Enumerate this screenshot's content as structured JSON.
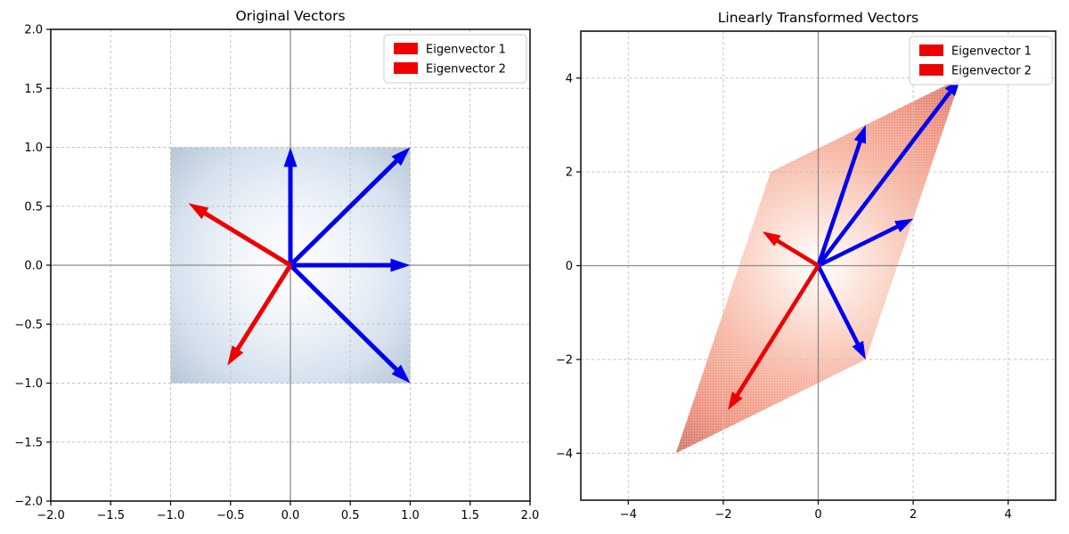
{
  "figure": {
    "background": "#ffffff",
    "accent_blue": "#0000ee",
    "accent_red": "#ee0000"
  },
  "chart_data": [
    {
      "type": "quiver",
      "title": "Original Vectors",
      "grid": true,
      "legend_position": "upper right",
      "x_axis": {
        "range": [
          -2,
          2
        ],
        "tick_values": [
          -2,
          -1.5,
          -1,
          -0.5,
          0,
          0.5,
          1,
          1.5,
          2
        ],
        "tick_labels": [
          "−2.0",
          "−1.5",
          "−1.0",
          "−0.5",
          "0.0",
          "0.5",
          "1.0",
          "1.5",
          "2.0"
        ]
      },
      "y_axis": {
        "range": [
          -2,
          2
        ],
        "tick_values": [
          -2,
          -1.5,
          -1,
          -0.5,
          0,
          0.5,
          1,
          1.5,
          2
        ],
        "tick_labels": [
          "−2.0",
          "−1.5",
          "−1.0",
          "−0.5",
          "0.0",
          "0.5",
          "1.0",
          "1.5",
          "2.0"
        ]
      },
      "vectors": [
        {
          "x": 1,
          "y": 1,
          "color": "#0000ee"
        },
        {
          "x": 0,
          "y": 1,
          "color": "#0000ee"
        },
        {
          "x": 1,
          "y": 0,
          "color": "#0000ee"
        },
        {
          "x": 1,
          "y": -1,
          "color": "#0000ee"
        }
      ],
      "eigenvectors": [
        {
          "label": "Eigenvector 1",
          "x": -0.851,
          "y": 0.526,
          "color": "#ee0000"
        },
        {
          "label": "Eigenvector 2",
          "x": -0.526,
          "y": -0.851,
          "color": "#ee0000"
        }
      ],
      "region": {
        "shape": "unit-square",
        "corners": [
          [
            -1,
            1
          ],
          [
            1,
            1
          ],
          [
            1,
            -1
          ],
          [
            -1,
            -1
          ]
        ],
        "fill_style": "blue-radial-glow"
      },
      "legend": {
        "entries": [
          {
            "label": "Eigenvector 1",
            "color": "#ee0000"
          },
          {
            "label": "Eigenvector 2",
            "color": "#ee0000"
          }
        ]
      }
    },
    {
      "type": "quiver",
      "title": "Linearly Transformed Vectors",
      "grid": true,
      "legend_position": "upper right",
      "x_axis": {
        "range": [
          -5,
          5
        ],
        "tick_values": [
          -4,
          -2,
          0,
          2,
          4
        ],
        "tick_labels": [
          "−4",
          "−2",
          "0",
          "2",
          "4"
        ]
      },
      "y_axis": {
        "range": [
          -5,
          5
        ],
        "tick_values": [
          -4,
          -2,
          0,
          2,
          4
        ],
        "tick_labels": [
          "−4",
          "−2",
          "0",
          "2",
          "4"
        ]
      },
      "vectors": [
        {
          "x": 3,
          "y": 4,
          "color": "#0000ee"
        },
        {
          "x": 1,
          "y": 3,
          "color": "#0000ee"
        },
        {
          "x": 2,
          "y": 1,
          "color": "#0000ee"
        },
        {
          "x": 1,
          "y": -2,
          "color": "#0000ee"
        }
      ],
      "eigenvectors": [
        {
          "label": "Eigenvector 1",
          "x": -1.176,
          "y": 0.727,
          "color": "#ee0000"
        },
        {
          "label": "Eigenvector 2",
          "x": -1.903,
          "y": -3.079,
          "color": "#ee0000"
        }
      ],
      "region": {
        "shape": "transformed-parallelogram",
        "corners": [
          [
            3,
            4
          ],
          [
            -1,
            2
          ],
          [
            -3,
            -4
          ],
          [
            1,
            -2
          ]
        ],
        "fill_style": "red-stipple-glow"
      },
      "legend": {
        "entries": [
          {
            "label": "Eigenvector 1",
            "color": "#ee0000"
          },
          {
            "label": "Eigenvector 2",
            "color": "#ee0000"
          }
        ]
      }
    }
  ]
}
